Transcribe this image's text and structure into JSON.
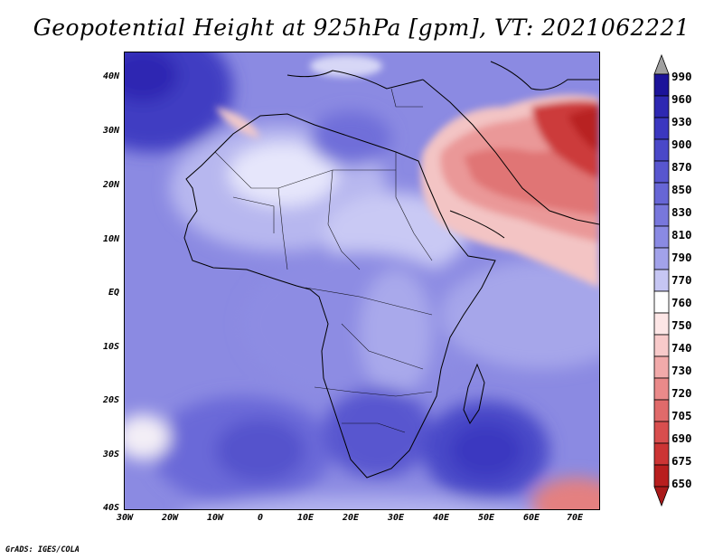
{
  "title": "Geopotential Height at 925hPa [gpm], VT: 2021062221",
  "map": {
    "variable": "Geopotential Height",
    "level": "925hPa",
    "units": "gpm",
    "valid_time": "2021062221",
    "lat_ticks": [
      "40N",
      "30N",
      "20N",
      "10N",
      "EQ",
      "10S",
      "20S",
      "30S",
      "40S"
    ],
    "lon_ticks": [
      "30W",
      "20W",
      "10W",
      "0",
      "10E",
      "20E",
      "30E",
      "40E",
      "50E",
      "60E",
      "70E"
    ]
  },
  "colorbar": {
    "labels": [
      "990",
      "960",
      "930",
      "900",
      "870",
      "850",
      "830",
      "810",
      "790",
      "770",
      "760",
      "750",
      "740",
      "730",
      "720",
      "705",
      "690",
      "675",
      "650"
    ],
    "colors": [
      "#a0a0a0",
      "#1c139a",
      "#2e28b2",
      "#3b37c0",
      "#4a48c8",
      "#5856cf",
      "#6766d6",
      "#7877dc",
      "#8a8ae3",
      "#a2a2ea",
      "#c6c6f3",
      "#ffffff",
      "#fde6e6",
      "#f8caca",
      "#f2aaaa",
      "#ea8a8a",
      "#e06a6a",
      "#d84e4e",
      "#cc3434",
      "#b81e1e",
      "#aa1a1a"
    ]
  },
  "credit": "GrADS: IGES/COLA"
}
